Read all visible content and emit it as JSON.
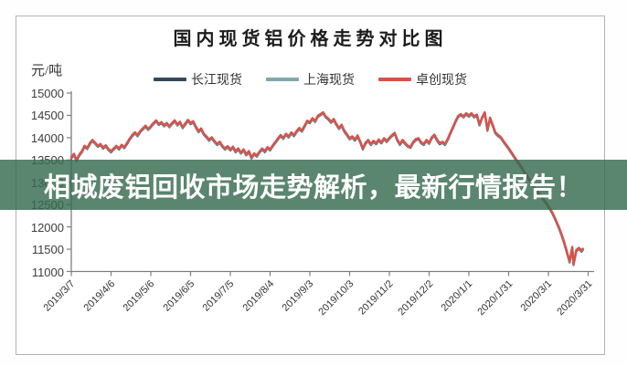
{
  "overlay": {
    "text": "相城废铝回收市场走势解析，最新行情报告！",
    "bg_rgba": "rgba(54,106,78,0.82)",
    "text_color": "#ffffff"
  },
  "chart_data": {
    "type": "line",
    "title": "国内现货铝价格走势对比图",
    "legend_position": "top",
    "grid": false,
    "y_axis": {
      "unit": "元/吨",
      "min": 11000,
      "max": 15000,
      "ticks": [
        15000,
        14500,
        14000,
        13500,
        13000,
        12500,
        12000,
        11500,
        11000
      ]
    },
    "x_axis": {
      "tick_labels": [
        "2019/3/7",
        "2019/4/6",
        "2019/5/6",
        "2019/6/5",
        "2019/7/5",
        "2019/8/4",
        "2019/9/3",
        "2019/10/3",
        "2019/11/2",
        "2019/12/2",
        "2020/1/1",
        "2020/1/31",
        "2020/3/1",
        "2020/3/31"
      ],
      "tick_days": [
        0,
        30,
        60,
        90,
        120,
        150,
        180,
        210,
        240,
        270,
        300,
        330,
        360,
        390
      ],
      "range_days": [
        0,
        390
      ]
    },
    "series": [
      {
        "name": "长江现货",
        "color": "#36495c",
        "value_offset": -25
      },
      {
        "name": "上海现货",
        "color": "#7ea8ac",
        "value_offset": -12
      },
      {
        "name": "卓创现货",
        "color": "#d8514a",
        "value_offset": 0
      }
    ],
    "points_note": "day offset from 2019/3/7 vs price in yuan/ton; the three series nearly coincide, offsets above approximate the overlap",
    "points": [
      [
        0,
        13560
      ],
      [
        2,
        13640
      ],
      [
        4,
        13500
      ],
      [
        6,
        13620
      ],
      [
        8,
        13700
      ],
      [
        10,
        13820
      ],
      [
        12,
        13770
      ],
      [
        14,
        13880
      ],
      [
        16,
        13950
      ],
      [
        18,
        13890
      ],
      [
        20,
        13820
      ],
      [
        22,
        13860
      ],
      [
        24,
        13780
      ],
      [
        26,
        13830
      ],
      [
        28,
        13750
      ],
      [
        30,
        13700
      ],
      [
        32,
        13760
      ],
      [
        34,
        13820
      ],
      [
        36,
        13760
      ],
      [
        38,
        13840
      ],
      [
        40,
        13790
      ],
      [
        42,
        13880
      ],
      [
        44,
        13980
      ],
      [
        46,
        14060
      ],
      [
        48,
        14120
      ],
      [
        50,
        14060
      ],
      [
        52,
        14150
      ],
      [
        54,
        14210
      ],
      [
        56,
        14270
      ],
      [
        58,
        14200
      ],
      [
        60,
        14260
      ],
      [
        62,
        14330
      ],
      [
        64,
        14390
      ],
      [
        66,
        14310
      ],
      [
        68,
        14350
      ],
      [
        70,
        14280
      ],
      [
        72,
        14330
      ],
      [
        74,
        14260
      ],
      [
        76,
        14330
      ],
      [
        78,
        14390
      ],
      [
        80,
        14300
      ],
      [
        82,
        14360
      ],
      [
        84,
        14240
      ],
      [
        86,
        14320
      ],
      [
        88,
        14400
      ],
      [
        90,
        14330
      ],
      [
        92,
        14370
      ],
      [
        94,
        14250
      ],
      [
        96,
        14150
      ],
      [
        98,
        14210
      ],
      [
        100,
        14090
      ],
      [
        102,
        14030
      ],
      [
        104,
        13960
      ],
      [
        106,
        14010
      ],
      [
        108,
        13930
      ],
      [
        110,
        13860
      ],
      [
        112,
        13910
      ],
      [
        114,
        13820
      ],
      [
        116,
        13760
      ],
      [
        118,
        13810
      ],
      [
        120,
        13740
      ],
      [
        122,
        13800
      ],
      [
        124,
        13700
      ],
      [
        126,
        13760
      ],
      [
        128,
        13670
      ],
      [
        130,
        13740
      ],
      [
        132,
        13630
      ],
      [
        134,
        13700
      ],
      [
        136,
        13560
      ],
      [
        138,
        13650
      ],
      [
        140,
        13600
      ],
      [
        142,
        13690
      ],
      [
        144,
        13760
      ],
      [
        146,
        13700
      ],
      [
        148,
        13790
      ],
      [
        150,
        13740
      ],
      [
        152,
        13830
      ],
      [
        154,
        13910
      ],
      [
        156,
        13990
      ],
      [
        158,
        14060
      ],
      [
        160,
        14000
      ],
      [
        162,
        14090
      ],
      [
        164,
        14030
      ],
      [
        166,
        14120
      ],
      [
        168,
        14060
      ],
      [
        170,
        14150
      ],
      [
        172,
        14220
      ],
      [
        174,
        14160
      ],
      [
        176,
        14270
      ],
      [
        178,
        14380
      ],
      [
        180,
        14350
      ],
      [
        182,
        14440
      ],
      [
        184,
        14380
      ],
      [
        186,
        14490
      ],
      [
        188,
        14530
      ],
      [
        190,
        14570
      ],
      [
        192,
        14480
      ],
      [
        194,
        14430
      ],
      [
        196,
        14360
      ],
      [
        198,
        14420
      ],
      [
        200,
        14310
      ],
      [
        202,
        14220
      ],
      [
        204,
        14290
      ],
      [
        206,
        14160
      ],
      [
        208,
        14080
      ],
      [
        210,
        13990
      ],
      [
        212,
        14030
      ],
      [
        214,
        13960
      ],
      [
        216,
        14050
      ],
      [
        218,
        13920
      ],
      [
        220,
        13760
      ],
      [
        222,
        13890
      ],
      [
        224,
        13950
      ],
      [
        226,
        13860
      ],
      [
        228,
        13930
      ],
      [
        230,
        13880
      ],
      [
        232,
        13960
      ],
      [
        234,
        13900
      ],
      [
        236,
        13990
      ],
      [
        238,
        13930
      ],
      [
        240,
        14000
      ],
      [
        242,
        14060
      ],
      [
        244,
        14110
      ],
      [
        246,
        13960
      ],
      [
        248,
        13860
      ],
      [
        250,
        13950
      ],
      [
        252,
        13880
      ],
      [
        254,
        13820
      ],
      [
        256,
        13800
      ],
      [
        258,
        13910
      ],
      [
        260,
        13970
      ],
      [
        262,
        13990
      ],
      [
        264,
        13900
      ],
      [
        266,
        13860
      ],
      [
        268,
        13950
      ],
      [
        270,
        13890
      ],
      [
        272,
        14010
      ],
      [
        274,
        14070
      ],
      [
        276,
        13960
      ],
      [
        278,
        13880
      ],
      [
        280,
        13910
      ],
      [
        282,
        13860
      ],
      [
        284,
        13970
      ],
      [
        286,
        14110
      ],
      [
        288,
        14240
      ],
      [
        290,
        14380
      ],
      [
        292,
        14490
      ],
      [
        294,
        14530
      ],
      [
        296,
        14480
      ],
      [
        298,
        14550
      ],
      [
        300,
        14500
      ],
      [
        302,
        14550
      ],
      [
        304,
        14480
      ],
      [
        306,
        14520
      ],
      [
        308,
        14300
      ],
      [
        310,
        14460
      ],
      [
        312,
        14570
      ],
      [
        314,
        14180
      ],
      [
        316,
        14450
      ],
      [
        318,
        14290
      ],
      [
        320,
        14120
      ],
      [
        322,
        14060
      ],
      [
        324,
        14020
      ],
      [
        326,
        13930
      ],
      [
        328,
        13850
      ],
      [
        330,
        13770
      ],
      [
        332,
        13680
      ],
      [
        334,
        13590
      ],
      [
        336,
        13500
      ],
      [
        338,
        13420
      ],
      [
        340,
        13330
      ],
      [
        342,
        13230
      ],
      [
        344,
        13140
      ],
      [
        346,
        13060
      ],
      [
        348,
        12960
      ],
      [
        350,
        12870
      ],
      [
        352,
        12790
      ],
      [
        354,
        12710
      ],
      [
        356,
        12640
      ],
      [
        358,
        12560
      ],
      [
        360,
        12470
      ],
      [
        362,
        12380
      ],
      [
        364,
        12260
      ],
      [
        366,
        12130
      ],
      [
        368,
        11990
      ],
      [
        370,
        11830
      ],
      [
        372,
        11650
      ],
      [
        374,
        11440
      ],
      [
        376,
        11230
      ],
      [
        378,
        11550
      ],
      [
        379,
        11170
      ],
      [
        381,
        11480
      ],
      [
        383,
        11530
      ],
      [
        385,
        11470
      ],
      [
        386,
        11510
      ]
    ],
    "axis_color": "#7f7f7f"
  }
}
